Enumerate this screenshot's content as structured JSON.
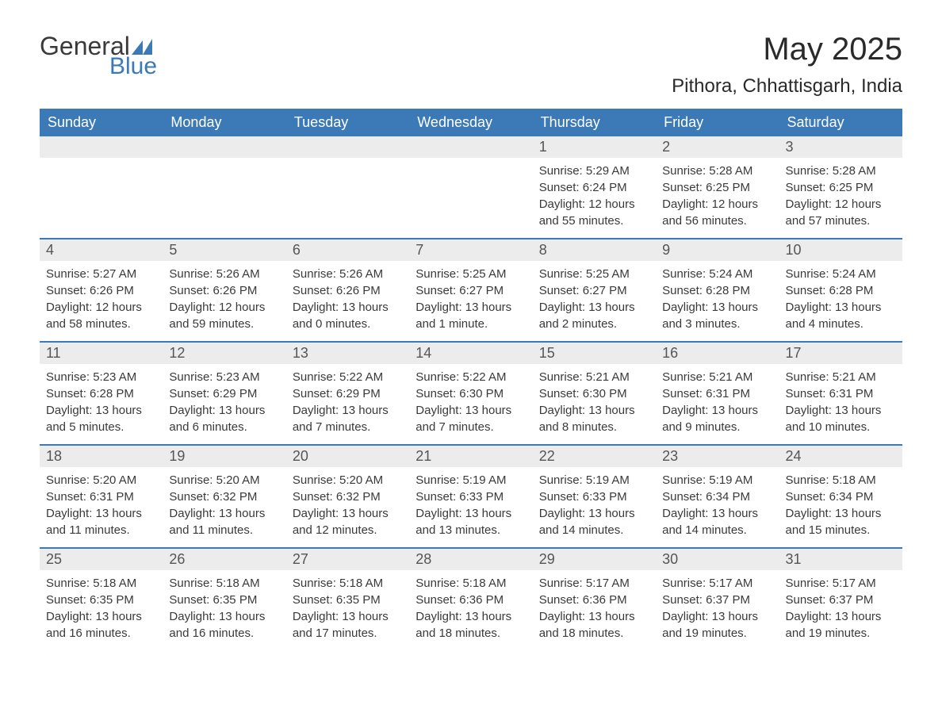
{
  "logo": {
    "word1": "General",
    "word2": "Blue",
    "tri_color": "#3b79b7"
  },
  "title": "May 2025",
  "location": "Pithora, Chhattisgarh, India",
  "colors": {
    "header_bg": "#3b79b7",
    "header_text": "#ffffff",
    "daynum_bg": "#ececec",
    "daynum_text": "#555555",
    "body_text": "#3a3a3a",
    "divider": "#3b79b7",
    "page_bg": "#ffffff"
  },
  "day_names": [
    "Sunday",
    "Monday",
    "Tuesday",
    "Wednesday",
    "Thursday",
    "Friday",
    "Saturday"
  ],
  "weeks": [
    [
      null,
      null,
      null,
      null,
      {
        "n": "1",
        "sunrise": "5:29 AM",
        "sunset": "6:24 PM",
        "daylight": "12 hours and 55 minutes."
      },
      {
        "n": "2",
        "sunrise": "5:28 AM",
        "sunset": "6:25 PM",
        "daylight": "12 hours and 56 minutes."
      },
      {
        "n": "3",
        "sunrise": "5:28 AM",
        "sunset": "6:25 PM",
        "daylight": "12 hours and 57 minutes."
      }
    ],
    [
      {
        "n": "4",
        "sunrise": "5:27 AM",
        "sunset": "6:26 PM",
        "daylight": "12 hours and 58 minutes."
      },
      {
        "n": "5",
        "sunrise": "5:26 AM",
        "sunset": "6:26 PM",
        "daylight": "12 hours and 59 minutes."
      },
      {
        "n": "6",
        "sunrise": "5:26 AM",
        "sunset": "6:26 PM",
        "daylight": "13 hours and 0 minutes."
      },
      {
        "n": "7",
        "sunrise": "5:25 AM",
        "sunset": "6:27 PM",
        "daylight": "13 hours and 1 minute."
      },
      {
        "n": "8",
        "sunrise": "5:25 AM",
        "sunset": "6:27 PM",
        "daylight": "13 hours and 2 minutes."
      },
      {
        "n": "9",
        "sunrise": "5:24 AM",
        "sunset": "6:28 PM",
        "daylight": "13 hours and 3 minutes."
      },
      {
        "n": "10",
        "sunrise": "5:24 AM",
        "sunset": "6:28 PM",
        "daylight": "13 hours and 4 minutes."
      }
    ],
    [
      {
        "n": "11",
        "sunrise": "5:23 AM",
        "sunset": "6:28 PM",
        "daylight": "13 hours and 5 minutes."
      },
      {
        "n": "12",
        "sunrise": "5:23 AM",
        "sunset": "6:29 PM",
        "daylight": "13 hours and 6 minutes."
      },
      {
        "n": "13",
        "sunrise": "5:22 AM",
        "sunset": "6:29 PM",
        "daylight": "13 hours and 7 minutes."
      },
      {
        "n": "14",
        "sunrise": "5:22 AM",
        "sunset": "6:30 PM",
        "daylight": "13 hours and 7 minutes."
      },
      {
        "n": "15",
        "sunrise": "5:21 AM",
        "sunset": "6:30 PM",
        "daylight": "13 hours and 8 minutes."
      },
      {
        "n": "16",
        "sunrise": "5:21 AM",
        "sunset": "6:31 PM",
        "daylight": "13 hours and 9 minutes."
      },
      {
        "n": "17",
        "sunrise": "5:21 AM",
        "sunset": "6:31 PM",
        "daylight": "13 hours and 10 minutes."
      }
    ],
    [
      {
        "n": "18",
        "sunrise": "5:20 AM",
        "sunset": "6:31 PM",
        "daylight": "13 hours and 11 minutes."
      },
      {
        "n": "19",
        "sunrise": "5:20 AM",
        "sunset": "6:32 PM",
        "daylight": "13 hours and 11 minutes."
      },
      {
        "n": "20",
        "sunrise": "5:20 AM",
        "sunset": "6:32 PM",
        "daylight": "13 hours and 12 minutes."
      },
      {
        "n": "21",
        "sunrise": "5:19 AM",
        "sunset": "6:33 PM",
        "daylight": "13 hours and 13 minutes."
      },
      {
        "n": "22",
        "sunrise": "5:19 AM",
        "sunset": "6:33 PM",
        "daylight": "13 hours and 14 minutes."
      },
      {
        "n": "23",
        "sunrise": "5:19 AM",
        "sunset": "6:34 PM",
        "daylight": "13 hours and 14 minutes."
      },
      {
        "n": "24",
        "sunrise": "5:18 AM",
        "sunset": "6:34 PM",
        "daylight": "13 hours and 15 minutes."
      }
    ],
    [
      {
        "n": "25",
        "sunrise": "5:18 AM",
        "sunset": "6:35 PM",
        "daylight": "13 hours and 16 minutes."
      },
      {
        "n": "26",
        "sunrise": "5:18 AM",
        "sunset": "6:35 PM",
        "daylight": "13 hours and 16 minutes."
      },
      {
        "n": "27",
        "sunrise": "5:18 AM",
        "sunset": "6:35 PM",
        "daylight": "13 hours and 17 minutes."
      },
      {
        "n": "28",
        "sunrise": "5:18 AM",
        "sunset": "6:36 PM",
        "daylight": "13 hours and 18 minutes."
      },
      {
        "n": "29",
        "sunrise": "5:17 AM",
        "sunset": "6:36 PM",
        "daylight": "13 hours and 18 minutes."
      },
      {
        "n": "30",
        "sunrise": "5:17 AM",
        "sunset": "6:37 PM",
        "daylight": "13 hours and 19 minutes."
      },
      {
        "n": "31",
        "sunrise": "5:17 AM",
        "sunset": "6:37 PM",
        "daylight": "13 hours and 19 minutes."
      }
    ]
  ],
  "labels": {
    "sunrise": "Sunrise: ",
    "sunset": "Sunset: ",
    "daylight": "Daylight: "
  }
}
